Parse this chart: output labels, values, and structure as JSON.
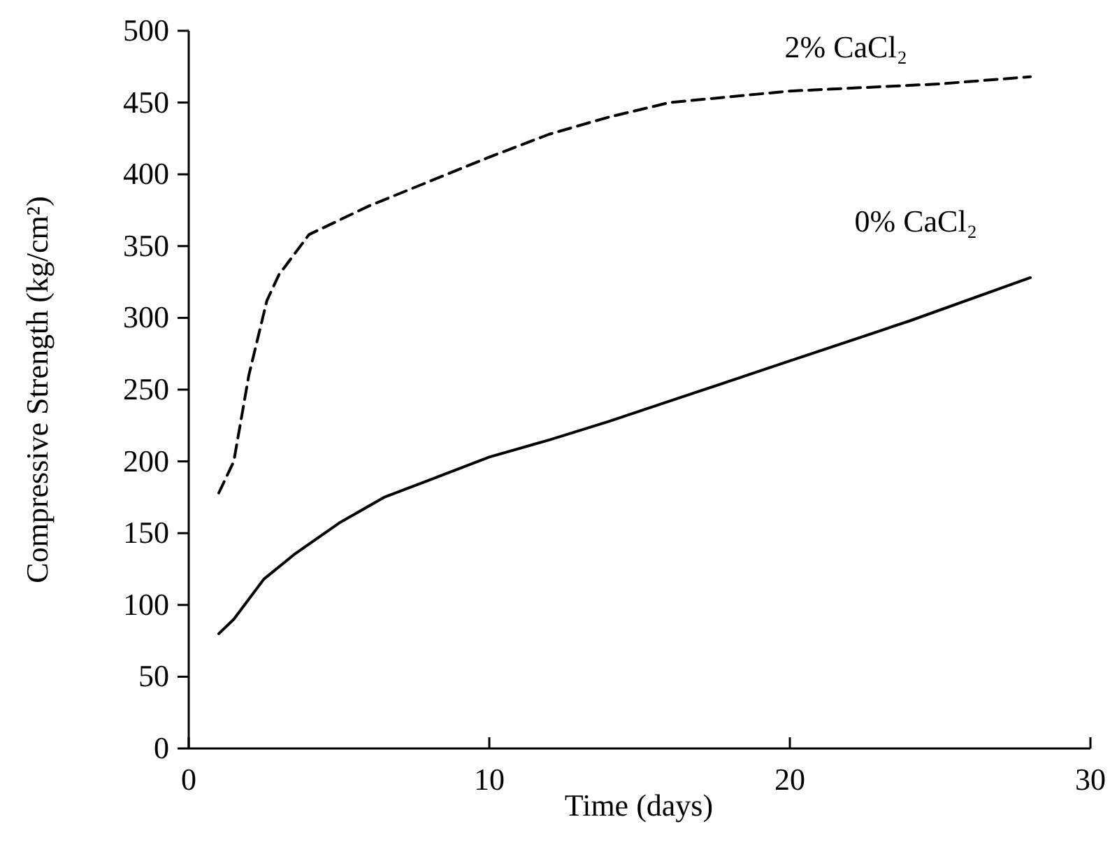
{
  "chart_data": {
    "type": "line",
    "xlabel": "Time (days)",
    "ylabel": "Compressive Strength (kg/cm²)",
    "xlim": [
      0,
      30
    ],
    "xticks": [
      0,
      10,
      20,
      30
    ],
    "ylim": [
      0,
      500
    ],
    "yticks": [
      0,
      50,
      100,
      150,
      200,
      250,
      300,
      350,
      400,
      450,
      500
    ],
    "grid": false,
    "marker": "none",
    "series": [
      {
        "name": "2% CaCl₂",
        "color": "#000000",
        "line_style": "dashed",
        "x": [
          1,
          1.5,
          2,
          2.6,
          3,
          4,
          5,
          6,
          8,
          10,
          12,
          14,
          16,
          20,
          25,
          28
        ],
        "values": [
          178,
          200,
          260,
          312,
          330,
          358,
          368,
          378,
          395,
          412,
          428,
          440,
          450,
          458,
          463,
          468
        ]
      },
      {
        "name": "0% CaCl₂",
        "color": "#000000",
        "line_style": "solid",
        "x": [
          1,
          1.5,
          2.5,
          3.5,
          5,
          6.5,
          8,
          10,
          12,
          14,
          16,
          20,
          24,
          28
        ],
        "values": [
          80,
          90,
          118,
          135,
          157,
          175,
          187,
          203,
          215,
          228,
          242,
          270,
          298,
          328
        ]
      }
    ]
  }
}
